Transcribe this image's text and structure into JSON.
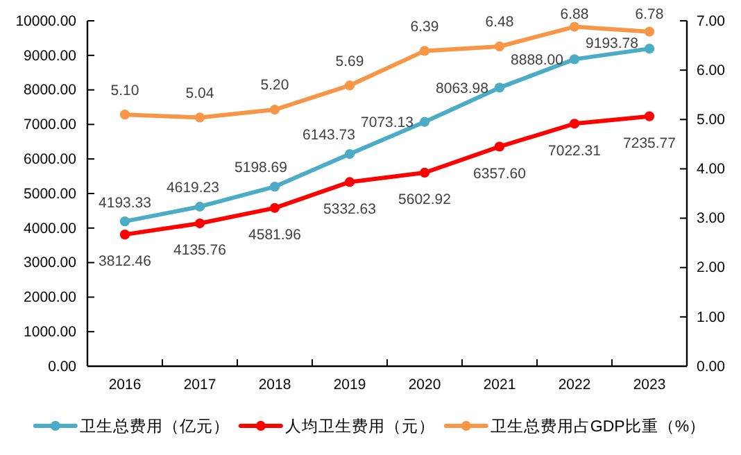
{
  "chart_data": {
    "type": "line",
    "categories": [
      "2016",
      "2017",
      "2018",
      "2019",
      "2020",
      "2021",
      "2022",
      "2023"
    ],
    "series": [
      {
        "name": "卫生总费用（亿元）",
        "color": "#4bacc6",
        "values": [
          4193.33,
          4619.23,
          5198.69,
          6143.73,
          7073.13,
          8063.98,
          8888.0,
          9193.78
        ],
        "value_labels": [
          "4193.33",
          "4619.23",
          "5198.69",
          "6143.73",
          "7073.13",
          "8063.98",
          "8888.00",
          "9193.78"
        ]
      },
      {
        "name": "人均卫生费用（元）",
        "color": "#ff0000",
        "values": [
          3812.46,
          4135.76,
          4581.96,
          5332.63,
          5602.92,
          6357.6,
          7022.31,
          7235.77
        ],
        "value_labels": [
          "3812.46",
          "4135.76",
          "4581.96",
          "5332.63",
          "5602.92",
          "6357.60",
          "7022.31",
          "7235.77"
        ]
      },
      {
        "name": "卫生总费用占GDP比重（%）",
        "color": "#f79646",
        "axis": "y2",
        "values": [
          5.1,
          5.04,
          5.2,
          5.69,
          6.39,
          6.48,
          6.88,
          6.78
        ],
        "value_labels": [
          "5.10",
          "5.04",
          "5.20",
          "5.69",
          "6.39",
          "6.48",
          "6.88",
          "6.78"
        ]
      }
    ],
    "ylim": [
      0,
      10000
    ],
    "yticks": [
      {
        "value": 0,
        "label": "0.00"
      },
      {
        "value": 1000,
        "label": "1000.00"
      },
      {
        "value": 2000,
        "label": "2000.00"
      },
      {
        "value": 3000,
        "label": "3000.00"
      },
      {
        "value": 4000,
        "label": "4000.00"
      },
      {
        "value": 5000,
        "label": "5000.00"
      },
      {
        "value": 6000,
        "label": "6000.00"
      },
      {
        "value": 7000,
        "label": "7000.00"
      },
      {
        "value": 8000,
        "label": "8000.00"
      },
      {
        "value": 9000,
        "label": "9000.00"
      },
      {
        "value": 10000,
        "label": "10000.00"
      }
    ],
    "y2lim": [
      0,
      7
    ],
    "y2ticks": [
      {
        "value": 0,
        "label": "0.00"
      },
      {
        "value": 1,
        "label": "1.00"
      },
      {
        "value": 2,
        "label": "2.00"
      },
      {
        "value": 3,
        "label": "3.00"
      },
      {
        "value": 4,
        "label": "4.00"
      },
      {
        "value": 5,
        "label": "5.00"
      },
      {
        "value": 6,
        "label": "6.00"
      },
      {
        "value": 7,
        "label": "7.00"
      }
    ],
    "legend": "bottom",
    "marker": "circle",
    "line_style": "solid"
  }
}
